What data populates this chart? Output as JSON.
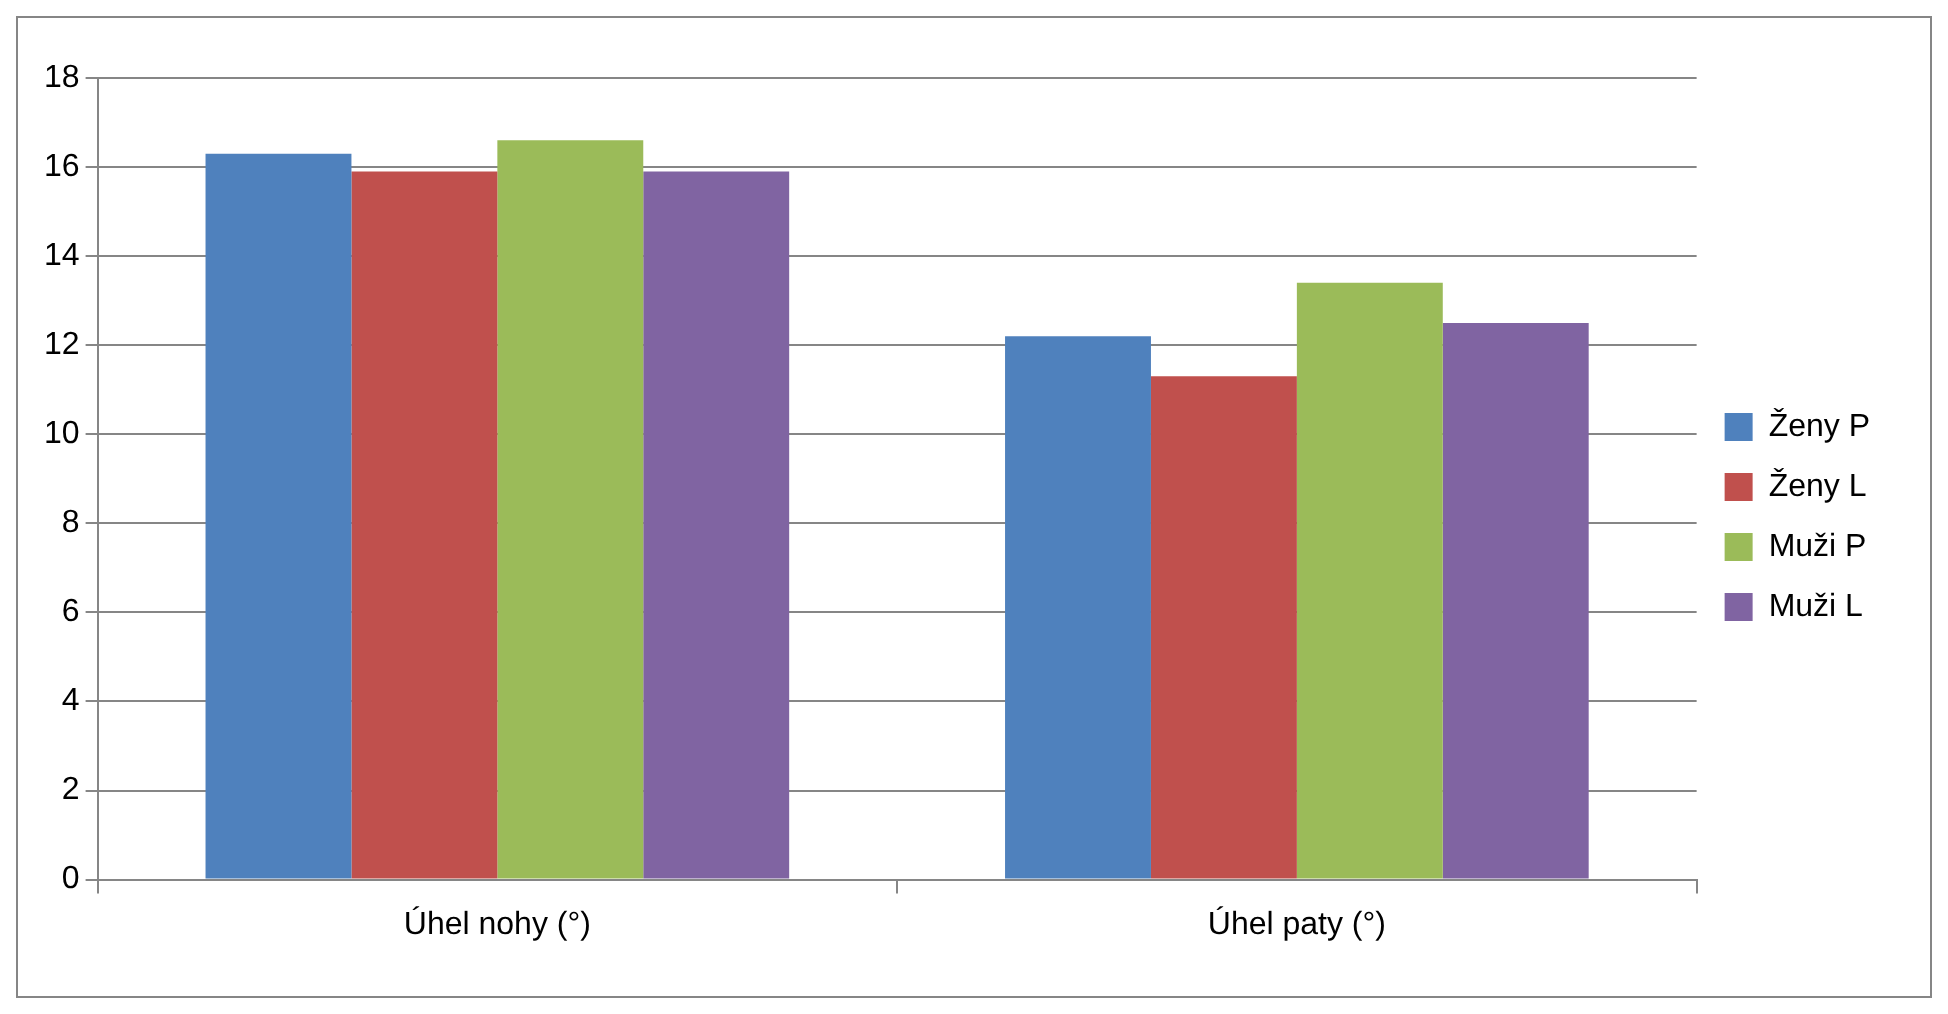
{
  "chart_data": {
    "type": "bar",
    "categories": [
      "Úhel nohy (°)",
      "Úhel paty (°)"
    ],
    "series": [
      {
        "name": "Ženy P",
        "color": "#4f81bd",
        "values": [
          16.3,
          12.2
        ]
      },
      {
        "name": "Ženy L",
        "color": "#c0504d",
        "values": [
          15.9,
          11.3
        ]
      },
      {
        "name": "Muži P",
        "color": "#9bbb59",
        "values": [
          16.6,
          13.4
        ]
      },
      {
        "name": "Muži L",
        "color": "#8064a2",
        "values": [
          15.9,
          12.5
        ]
      }
    ],
    "ylim": [
      0,
      18
    ],
    "yticks": [
      0,
      2,
      4,
      6,
      8,
      10,
      12,
      14,
      16,
      18
    ],
    "grid": "y",
    "legend": "right"
  }
}
